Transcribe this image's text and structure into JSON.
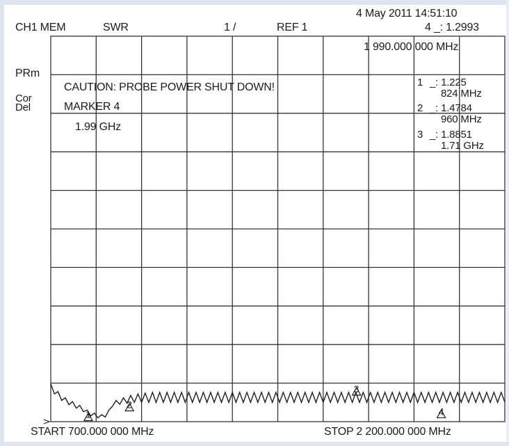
{
  "header": {
    "channel": "CH1 MEM",
    "format": "SWR",
    "scale": "1 /",
    "ref": "REF 1",
    "datetime": "4 May 2011  14:51:10",
    "active_marker_readout": "4 _: 1.2993",
    "active_marker_freq": "1 990.000 000 MHz"
  },
  "side_labels": {
    "prm": "PRm",
    "cor": "Cor",
    "del": "Del"
  },
  "messages": {
    "caution": "CAUTION: PROBE POWER SHUT DOWN!",
    "marker_title": "MARKER 4",
    "marker_freq": "1.99 GHz"
  },
  "marker_table": [
    {
      "index": "1",
      "value": "_: 1.225",
      "freq": "824 MHz"
    },
    {
      "index": "2",
      "value": "_: 1.4784",
      "freq": "960 MHz"
    },
    {
      "index": "3",
      "value": "_: 1.8851",
      "freq": "1.71 GHz"
    }
  ],
  "footer": {
    "start": "START  700.000 000 MHz",
    "stop": "STOP 2 200.000 000 MHz"
  },
  "colors": {
    "background": "#ffffff",
    "trace": "#1e1e1e",
    "grid": "#333333"
  },
  "chart_data": {
    "type": "line",
    "title": "",
    "xlabel": "",
    "ylabel": "",
    "x_unit": "MHz",
    "xlim": [
      700,
      2200
    ],
    "ylim": [
      1,
      11
    ],
    "grid": true,
    "divisions_x": 10,
    "divisions_y": 10,
    "series": [
      {
        "x": [
          700,
          712,
          724,
          736,
          748,
          760,
          772,
          784,
          796,
          808,
          820,
          832,
          844,
          856,
          868,
          880,
          892,
          904,
          916,
          928,
          940,
          952,
          964,
          976,
          988,
          1000,
          1012,
          1024,
          1036,
          1048,
          1060,
          1072,
          1084,
          1096,
          1108,
          1120,
          1132,
          1144,
          1156,
          1168,
          1180,
          1192,
          1204,
          1216,
          1228,
          1240,
          1252,
          1264,
          1276,
          1288,
          1300,
          1312,
          1324,
          1336,
          1348,
          1360,
          1372,
          1384,
          1396,
          1408,
          1420,
          1432,
          1444,
          1456,
          1468,
          1480,
          1492,
          1504,
          1516,
          1528,
          1540,
          1552,
          1564,
          1576,
          1588,
          1600,
          1612,
          1624,
          1636,
          1648,
          1660,
          1672,
          1684,
          1696,
          1708,
          1720,
          1732,
          1744,
          1756,
          1768,
          1780,
          1792,
          1804,
          1816,
          1828,
          1840,
          1852,
          1864,
          1876,
          1888,
          1900,
          1912,
          1924,
          1936,
          1948,
          1960,
          1972,
          1984,
          1996,
          2008,
          2020,
          2032,
          2044,
          2056,
          2068,
          2080,
          2092,
          2104,
          2116,
          2128,
          2140,
          2152,
          2164,
          2176,
          2188,
          2200
        ],
        "y": [
          1.98,
          1.72,
          1.78,
          1.55,
          1.62,
          1.44,
          1.52,
          1.35,
          1.42,
          1.26,
          1.3,
          1.15,
          1.22,
          1.1,
          1.18,
          1.12,
          1.3,
          1.4,
          1.55,
          1.45,
          1.62,
          1.48,
          1.68,
          1.5,
          1.72,
          1.5,
          1.74,
          1.5,
          1.76,
          1.5,
          1.76,
          1.5,
          1.76,
          1.5,
          1.76,
          1.5,
          1.76,
          1.5,
          1.76,
          1.5,
          1.76,
          1.5,
          1.76,
          1.5,
          1.76,
          1.5,
          1.76,
          1.5,
          1.76,
          1.5,
          1.76,
          1.5,
          1.76,
          1.5,
          1.76,
          1.5,
          1.76,
          1.5,
          1.76,
          1.5,
          1.76,
          1.5,
          1.76,
          1.5,
          1.76,
          1.5,
          1.76,
          1.5,
          1.76,
          1.5,
          1.76,
          1.5,
          1.76,
          1.5,
          1.76,
          1.5,
          1.76,
          1.5,
          1.76,
          1.5,
          1.76,
          1.5,
          1.76,
          1.5,
          1.76,
          1.5,
          1.76,
          1.5,
          1.76,
          1.5,
          1.76,
          1.5,
          1.76,
          1.5,
          1.76,
          1.5,
          1.76,
          1.5,
          1.76,
          1.5,
          1.76,
          1.5,
          1.76,
          1.5,
          1.76,
          1.5,
          1.76,
          1.5,
          1.76,
          1.5,
          1.76,
          1.5,
          1.76,
          1.5,
          1.76,
          1.5,
          1.76,
          1.5,
          1.76,
          1.5,
          1.76,
          1.5,
          1.76,
          1.5,
          1.76,
          1.5
        ]
      }
    ],
    "markers": [
      {
        "label": "1",
        "x": 824,
        "y": 1.225
      },
      {
        "label": "2",
        "x": 960,
        "y": 1.4784
      },
      {
        "label": "3",
        "x": 1710,
        "y": 1.8851
      },
      {
        "label": "4",
        "x": 1990,
        "y": 1.2993
      }
    ]
  }
}
